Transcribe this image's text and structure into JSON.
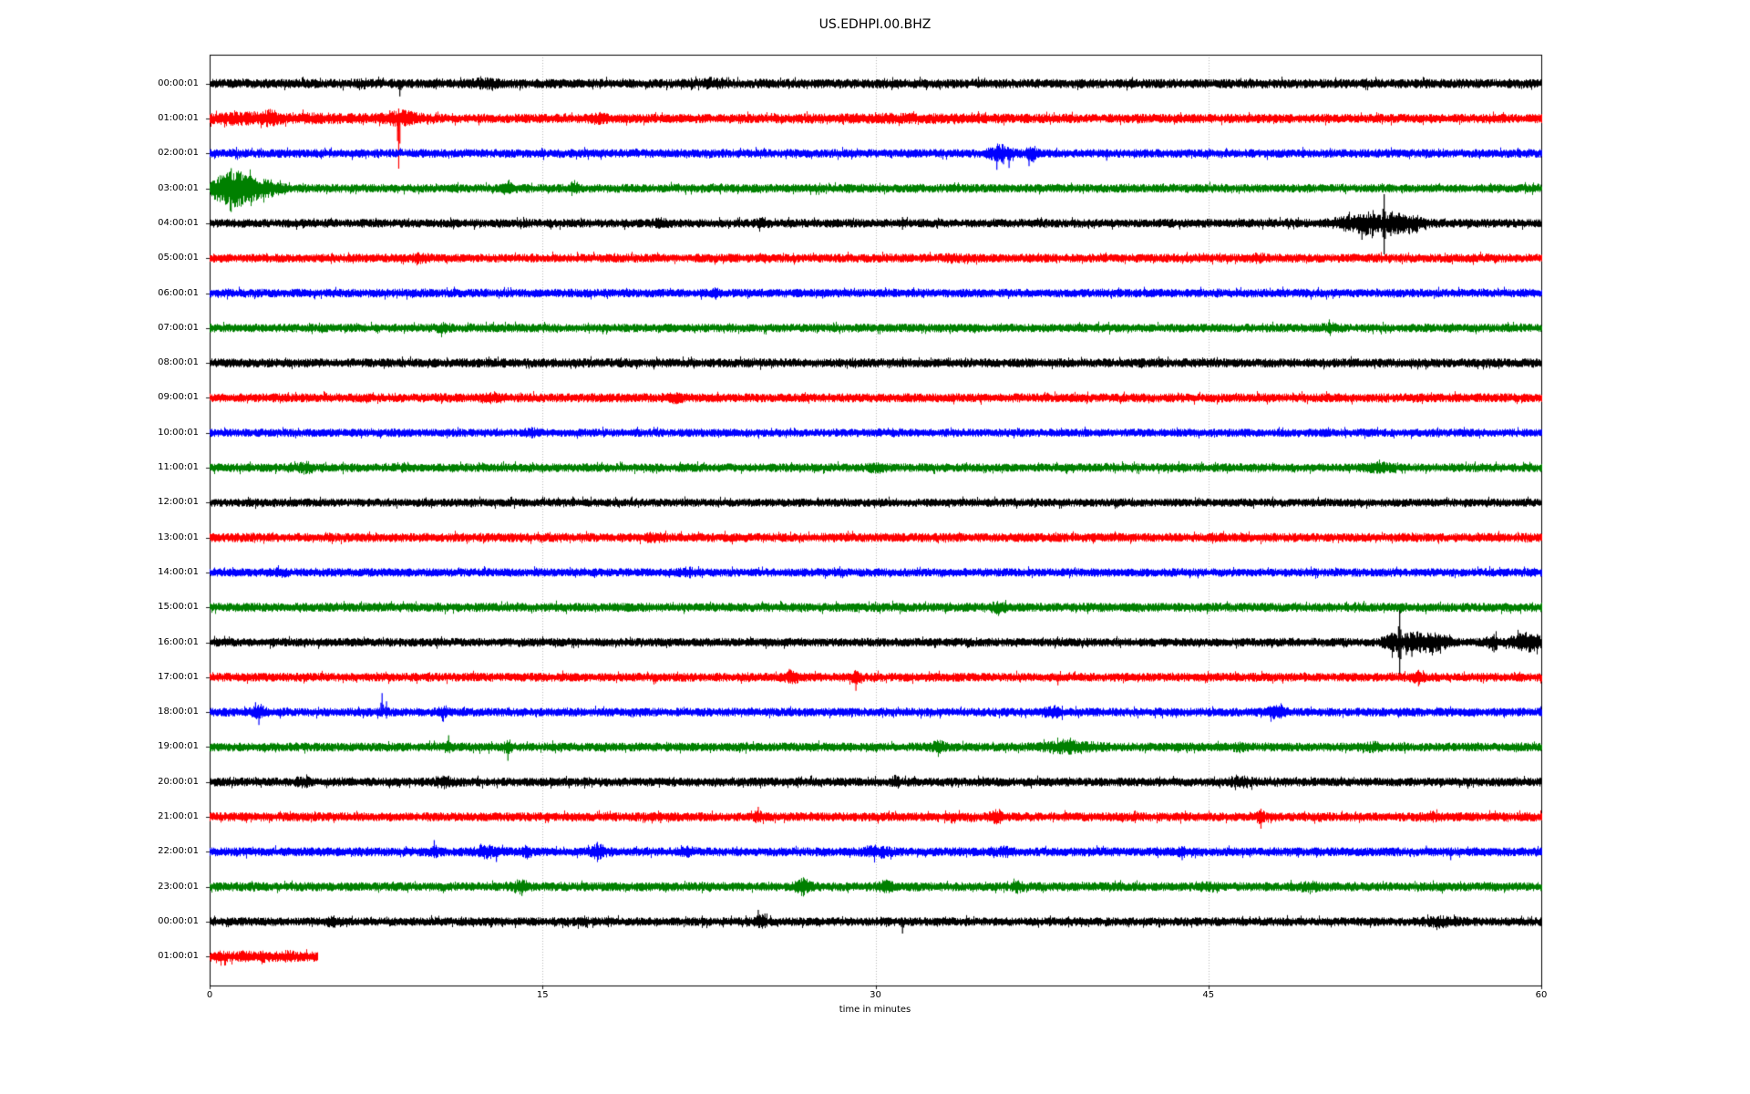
{
  "figure": {
    "title": "US.EDHPI.00.BHZ",
    "xlabel": "time in minutes"
  },
  "colors": {
    "background": "#ffffff",
    "axis": "#000000",
    "grid": "#b0b0b0",
    "trace_cycle": [
      "#000000",
      "#ff0000",
      "#0000ff",
      "#008000"
    ]
  },
  "chart_data": {
    "type": "line",
    "subtype": "seismogram-dayplot",
    "title": "US.EDHPI.00.BHZ",
    "xlabel": "time in minutes",
    "xlim": [
      0,
      60
    ],
    "x_ticks": [
      {
        "value": 0,
        "label": "0"
      },
      {
        "value": 15,
        "label": "15"
      },
      {
        "value": 30,
        "label": "30"
      },
      {
        "value": 45,
        "label": "45"
      },
      {
        "value": 60,
        "label": "60"
      }
    ],
    "grid_minutes": [
      15,
      30,
      45
    ],
    "grid_style": "dotted",
    "rows_count": 26,
    "bursts_format": "[center_minute, half_width_minutes, extra_amplitude_px]",
    "spikes_format": "[minute, up_px, down_px]",
    "rows": [
      {
        "label": "00:00:01",
        "color": "#000000",
        "end": 60,
        "amp": 4.5,
        "bursts": [
          [
            7.0,
            0.2,
            2
          ],
          [
            12.4,
            0.5,
            2
          ],
          [
            22.6,
            0.5,
            2
          ]
        ],
        "spikes": [
          [
            8.55,
            4,
            14
          ]
        ]
      },
      {
        "label": "01:00:01",
        "color": "#ff0000",
        "end": 60,
        "amp": 4.5,
        "bursts": [
          [
            1.2,
            1.0,
            2
          ],
          [
            2.7,
            0.3,
            4
          ],
          [
            4.0,
            3.0,
            1.5
          ],
          [
            8.6,
            0.8,
            4
          ],
          [
            17.5,
            0.4,
            2
          ],
          [
            31.0,
            4.0,
            1
          ]
        ],
        "spikes": [
          [
            2.0,
            8,
            4
          ],
          [
            2.7,
            10,
            6
          ],
          [
            5.6,
            6,
            5
          ],
          [
            8.1,
            9,
            4
          ],
          [
            8.5,
            11,
            55
          ],
          [
            8.8,
            6,
            8
          ],
          [
            9.3,
            7,
            4
          ],
          [
            25.3,
            6,
            4
          ],
          [
            31.5,
            5,
            6
          ]
        ]
      },
      {
        "label": "02:00:01",
        "color": "#0000ff",
        "end": 60,
        "amp": 4.2,
        "bursts": [
          [
            35.6,
            0.5,
            5
          ],
          [
            37.0,
            0.25,
            4
          ]
        ],
        "spikes": [
          [
            35.45,
            8,
            18
          ],
          [
            35.75,
            6,
            12
          ],
          [
            36.0,
            5,
            16
          ],
          [
            36.9,
            6,
            14
          ],
          [
            37.1,
            4,
            10
          ],
          [
            40.4,
            3,
            8
          ]
        ]
      },
      {
        "label": "03:00:01",
        "color": "#008000",
        "end": 60,
        "amp": 4.2,
        "bursts": [
          [
            0.9,
            0.9,
            12
          ],
          [
            1.8,
            0.8,
            6
          ],
          [
            2.8,
            0.5,
            3
          ],
          [
            13.4,
            0.3,
            3
          ],
          [
            16.4,
            0.2,
            4
          ]
        ],
        "spikes": [
          [
            0.35,
            10,
            8
          ],
          [
            0.6,
            12,
            10
          ],
          [
            0.95,
            22,
            26
          ],
          [
            1.3,
            12,
            14
          ],
          [
            1.6,
            10,
            8
          ],
          [
            2.2,
            6,
            8
          ]
        ]
      },
      {
        "label": "04:00:01",
        "color": "#000000",
        "end": 60,
        "amp": 4.2,
        "bursts": [
          [
            20.3,
            0.3,
            2
          ],
          [
            24.9,
            0.3,
            2
          ],
          [
            51.5,
            0.8,
            5
          ],
          [
            52.2,
            0.4,
            5
          ],
          [
            53.4,
            0.8,
            6
          ],
          [
            54.3,
            0.5,
            3
          ]
        ],
        "spikes": [
          [
            31.2,
            7,
            7
          ],
          [
            51.3,
            10,
            8
          ],
          [
            51.9,
            6,
            18
          ],
          [
            52.4,
            8,
            14
          ],
          [
            52.9,
            32,
            34
          ],
          [
            53.2,
            12,
            14
          ],
          [
            53.5,
            8,
            12
          ]
        ]
      },
      {
        "label": "05:00:01",
        "color": "#ff0000",
        "end": 60,
        "amp": 4.3,
        "bursts": [
          [
            9.5,
            0.3,
            2
          ],
          [
            33.5,
            0.4,
            1.5
          ],
          [
            47.2,
            0.3,
            2
          ]
        ],
        "spikes": [
          [
            47.3,
            4,
            6
          ]
        ]
      },
      {
        "label": "06:00:01",
        "color": "#0000ff",
        "end": 60,
        "amp": 4.2,
        "bursts": [
          [
            22.8,
            0.2,
            2
          ]
        ],
        "spikes": [
          [
            27.6,
            3,
            6
          ]
        ]
      },
      {
        "label": "07:00:01",
        "color": "#008000",
        "end": 60,
        "amp": 4.2,
        "bursts": [
          [
            10.5,
            0.3,
            2
          ],
          [
            50.5,
            0.4,
            1.5
          ]
        ],
        "spikes": []
      },
      {
        "label": "08:00:01",
        "color": "#000000",
        "end": 60,
        "amp": 4.4,
        "bursts": [],
        "spikes": []
      },
      {
        "label": "09:00:01",
        "color": "#ff0000",
        "end": 60,
        "amp": 4.4,
        "bursts": [
          [
            12.8,
            0.4,
            2
          ],
          [
            21.0,
            0.3,
            2
          ]
        ],
        "spikes": []
      },
      {
        "label": "10:00:01",
        "color": "#0000ff",
        "end": 60,
        "amp": 4.0,
        "bursts": [
          [
            14.5,
            0.3,
            2
          ]
        ],
        "spikes": []
      },
      {
        "label": "11:00:01",
        "color": "#008000",
        "end": 60,
        "amp": 4.2,
        "bursts": [
          [
            4.3,
            0.3,
            3
          ],
          [
            30.0,
            0.4,
            2
          ],
          [
            52.7,
            0.6,
            2
          ]
        ],
        "spikes": []
      },
      {
        "label": "12:00:01",
        "color": "#000000",
        "end": 60,
        "amp": 4.0,
        "bursts": [],
        "spikes": []
      },
      {
        "label": "13:00:01",
        "color": "#ff0000",
        "end": 60,
        "amp": 4.4,
        "bursts": [
          [
            20.0,
            0.4,
            1.5
          ]
        ],
        "spikes": []
      },
      {
        "label": "14:00:01",
        "color": "#0000ff",
        "end": 60,
        "amp": 4.1,
        "bursts": [
          [
            3.2,
            0.3,
            2
          ],
          [
            21.5,
            0.3,
            2
          ]
        ],
        "spikes": []
      },
      {
        "label": "15:00:01",
        "color": "#008000",
        "end": 60,
        "amp": 4.4,
        "bursts": [
          [
            35.5,
            0.4,
            2
          ]
        ],
        "spikes": []
      },
      {
        "label": "16:00:01",
        "color": "#000000",
        "end": 60,
        "amp": 4.2,
        "bursts": [
          [
            53.2,
            0.3,
            6
          ],
          [
            54.3,
            0.8,
            6
          ],
          [
            55.3,
            0.6,
            4
          ],
          [
            57.8,
            0.25,
            5
          ],
          [
            59.3,
            0.7,
            6
          ]
        ],
        "spikes": [
          [
            53.6,
            35,
            37
          ],
          [
            53.9,
            10,
            14
          ],
          [
            54.15,
            8,
            16
          ],
          [
            54.5,
            10,
            8
          ],
          [
            55.0,
            10,
            6
          ],
          [
            55.3,
            6,
            10
          ],
          [
            57.85,
            9,
            11
          ],
          [
            59.0,
            10,
            8
          ],
          [
            59.5,
            8,
            10
          ],
          [
            59.8,
            9,
            7
          ]
        ]
      },
      {
        "label": "17:00:01",
        "color": "#ff0000",
        "end": 60,
        "amp": 4.3,
        "bursts": [
          [
            26.2,
            0.3,
            3
          ],
          [
            29.1,
            0.2,
            3
          ],
          [
            54.4,
            0.3,
            3
          ]
        ],
        "spikes": [
          [
            20.0,
            3,
            8
          ],
          [
            26.1,
            9,
            6
          ],
          [
            26.45,
            5,
            7
          ],
          [
            29.1,
            5,
            15
          ],
          [
            29.35,
            4,
            7
          ],
          [
            38.2,
            3,
            9
          ],
          [
            54.45,
            6,
            10
          ]
        ]
      },
      {
        "label": "18:00:01",
        "color": "#0000ff",
        "end": 60,
        "amp": 4.2,
        "bursts": [
          [
            2.2,
            0.3,
            3
          ],
          [
            10.5,
            0.3,
            2
          ],
          [
            38.0,
            0.4,
            3
          ],
          [
            48.0,
            0.4,
            3
          ]
        ],
        "spikes": [
          [
            2.05,
            11,
            5
          ],
          [
            2.2,
            5,
            14
          ],
          [
            2.4,
            7,
            4
          ],
          [
            7.75,
            21,
            5
          ],
          [
            7.95,
            12,
            7
          ],
          [
            48.0,
            6,
            5
          ]
        ]
      },
      {
        "label": "19:00:01",
        "color": "#008000",
        "end": 60,
        "amp": 4.3,
        "bursts": [
          [
            10.75,
            0.2,
            3
          ],
          [
            13.4,
            0.2,
            3
          ],
          [
            32.8,
            0.3,
            3
          ],
          [
            38.8,
            1.2,
            3
          ],
          [
            46.5,
            0.3,
            2
          ],
          [
            52.3,
            0.4,
            2
          ]
        ],
        "spikes": [
          [
            10.75,
            13,
            4
          ],
          [
            13.42,
            4,
            15
          ],
          [
            38.8,
            5,
            8
          ]
        ]
      },
      {
        "label": "20:00:01",
        "color": "#000000",
        "end": 60,
        "amp": 4.3,
        "bursts": [
          [
            4.2,
            0.3,
            2
          ],
          [
            10.55,
            0.3,
            3
          ],
          [
            30.9,
            0.2,
            3
          ],
          [
            46.5,
            0.6,
            2
          ]
        ],
        "spikes": [
          [
            10.5,
            7,
            4
          ],
          [
            30.9,
            7,
            4
          ]
        ]
      },
      {
        "label": "21:00:01",
        "color": "#ff0000",
        "end": 60,
        "amp": 4.4,
        "bursts": [
          [
            24.7,
            0.2,
            3
          ],
          [
            35.45,
            0.3,
            4
          ],
          [
            47.35,
            0.2,
            3
          ],
          [
            55.0,
            0.4,
            2
          ]
        ],
        "spikes": [
          [
            20.3,
            3,
            7
          ],
          [
            24.7,
            11,
            6
          ],
          [
            35.35,
            5,
            8
          ],
          [
            35.6,
            4,
            7
          ],
          [
            47.35,
            9,
            13
          ]
        ]
      },
      {
        "label": "22:00:01",
        "color": "#0000ff",
        "end": 60,
        "amp": 4.3,
        "bursts": [
          [
            10.1,
            0.2,
            3
          ],
          [
            12.5,
            0.5,
            3
          ],
          [
            14.3,
            0.2,
            3
          ],
          [
            17.5,
            0.3,
            4
          ],
          [
            21.5,
            0.3,
            2
          ],
          [
            30.0,
            0.6,
            3
          ],
          [
            35.8,
            0.3,
            2
          ],
          [
            43.8,
            0.2,
            2
          ]
        ],
        "spikes": [
          [
            10.1,
            13,
            5
          ],
          [
            12.2,
            9,
            5
          ],
          [
            12.9,
            4,
            11
          ],
          [
            14.3,
            6,
            5
          ],
          [
            17.45,
            11,
            4
          ],
          [
            17.7,
            8,
            5
          ],
          [
            43.8,
            4,
            9
          ],
          [
            54.8,
            7,
            3
          ],
          [
            55.9,
            3,
            9
          ]
        ]
      },
      {
        "label": "23:00:01",
        "color": "#008000",
        "end": 60,
        "amp": 4.4,
        "bursts": [
          [
            14.0,
            0.3,
            4
          ],
          [
            26.7,
            0.3,
            5
          ],
          [
            30.4,
            0.3,
            4
          ],
          [
            36.4,
            0.2,
            3
          ],
          [
            45.0,
            0.3,
            2
          ],
          [
            49.5,
            0.4,
            2
          ]
        ],
        "spikes": [
          [
            14.05,
            4,
            10
          ],
          [
            26.65,
            9,
            4
          ],
          [
            30.4,
            7,
            5
          ]
        ]
      },
      {
        "label": "00:00:01",
        "color": "#000000",
        "end": 60,
        "amp": 4.2,
        "bursts": [
          [
            5.5,
            0.3,
            2
          ],
          [
            16.8,
            0.2,
            2
          ],
          [
            24.85,
            0.25,
            3
          ],
          [
            55.5,
            0.8,
            2
          ]
        ],
        "spikes": [
          [
            24.7,
            13,
            4
          ],
          [
            25.0,
            9,
            4
          ],
          [
            31.2,
            3,
            13
          ]
        ]
      },
      {
        "label": "01:00:01",
        "color": "#ff0000",
        "end": 4.85,
        "amp": 5.0,
        "bursts": [
          [
            0.5,
            0.3,
            1
          ],
          [
            1.5,
            0.3,
            1.5
          ],
          [
            2.5,
            0.3,
            1
          ],
          [
            3.5,
            0.3,
            1.5
          ]
        ],
        "spikes": []
      }
    ]
  }
}
